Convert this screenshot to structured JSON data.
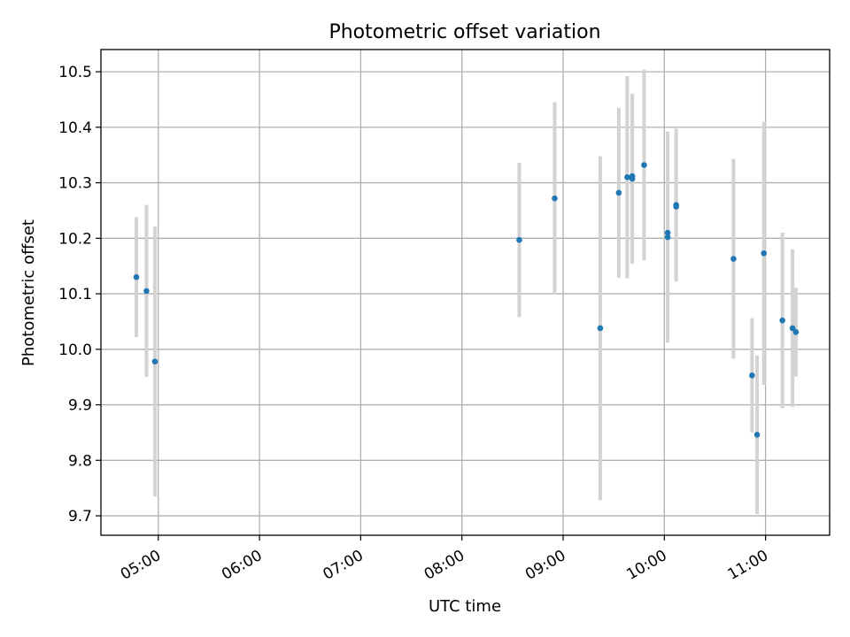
{
  "chart_data": {
    "type": "scatter",
    "title": "Photometric offset variation",
    "xlabel": "UTC time",
    "ylabel": "Photometric offset",
    "x_axis_kind": "time of day (UTC)",
    "xlim": [
      "04:26",
      "11:38"
    ],
    "ylim": [
      9.665,
      10.54
    ],
    "grid": true,
    "x_ticks": [
      "05:00",
      "06:00",
      "07:00",
      "08:00",
      "09:00",
      "10:00",
      "11:00"
    ],
    "y_ticks": [
      9.7,
      9.8,
      9.9,
      10.0,
      10.1,
      10.2,
      10.3,
      10.4,
      10.5
    ],
    "y_tick_labels": [
      "9.7",
      "9.8",
      "9.9",
      "10.0",
      "10.1",
      "10.2",
      "10.3",
      "10.4",
      "10.5"
    ],
    "marker_color": "#1f77b4",
    "errorbar_color": "#d3d3d3",
    "points": [
      {
        "t": "04:47",
        "y": 10.13,
        "err": 0.108
      },
      {
        "t": "04:53",
        "y": 10.105,
        "err": 0.155
      },
      {
        "t": "04:58",
        "y": 9.978,
        "err": 0.243
      },
      {
        "t": "08:34",
        "y": 10.197,
        "err": 0.139
      },
      {
        "t": "08:55",
        "y": 10.272,
        "err": 0.173
      },
      {
        "t": "09:22",
        "y": 10.038,
        "err": 0.31
      },
      {
        "t": "09:33",
        "y": 10.282,
        "err": 0.153
      },
      {
        "t": "09:38",
        "y": 10.31,
        "err": 0.182
      },
      {
        "t": "09:41",
        "y": 10.312,
        "err": 0.148
      },
      {
        "t": "09:41",
        "y": 10.307,
        "err": 0.153
      },
      {
        "t": "09:48",
        "y": 10.332,
        "err": 0.172
      },
      {
        "t": "10:02",
        "y": 10.21,
        "err": 0.182
      },
      {
        "t": "10:02",
        "y": 10.202,
        "err": 0.19
      },
      {
        "t": "10:07",
        "y": 10.26,
        "err": 0.138
      },
      {
        "t": "10:07",
        "y": 10.257,
        "err": 0.128
      },
      {
        "t": "10:41",
        "y": 10.163,
        "err": 0.18
      },
      {
        "t": "10:52",
        "y": 9.953,
        "err": 0.103
      },
      {
        "t": "10:55",
        "y": 9.846,
        "err": 0.143
      },
      {
        "t": "10:59",
        "y": 10.173,
        "err": 0.237
      },
      {
        "t": "11:10",
        "y": 10.052,
        "err": 0.158
      },
      {
        "t": "11:16",
        "y": 10.038,
        "err": 0.142
      },
      {
        "t": "11:18",
        "y": 10.031,
        "err": 0.08
      }
    ]
  }
}
